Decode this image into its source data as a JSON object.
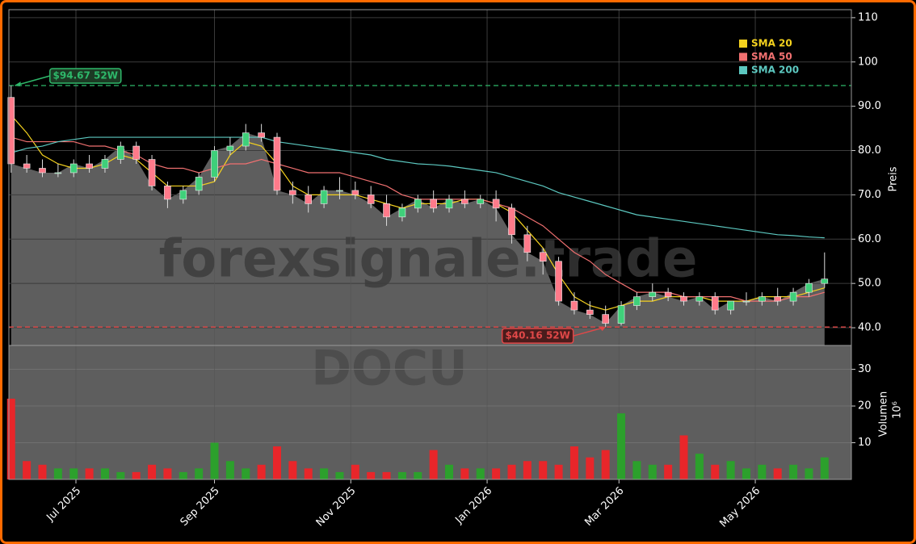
{
  "chart_data": {
    "type": "candlestick",
    "x": [
      1,
      8,
      15,
      22,
      29,
      36,
      43,
      50,
      57,
      64,
      71,
      78,
      85,
      92,
      99,
      106,
      113,
      120,
      127,
      134,
      141,
      148,
      155,
      162,
      169,
      176,
      183,
      190,
      197,
      204,
      211,
      218,
      225,
      232,
      239,
      246,
      253,
      260,
      267,
      274,
      281,
      288,
      295,
      302,
      309,
      316,
      323,
      330,
      337,
      344,
      351,
      358,
      365
    ],
    "xlim": [
      0,
      377
    ],
    "xticks": [
      {
        "value": 30,
        "label": "Jul 2025"
      },
      {
        "value": 92,
        "label": "Sep 2025"
      },
      {
        "value": 153,
        "label": "Nov 2025"
      },
      {
        "value": 214,
        "label": "Jan 2026"
      },
      {
        "value": 273,
        "label": "Mar 2026"
      },
      {
        "value": 334,
        "label": "May 2026"
      }
    ],
    "open": [
      92,
      77,
      76,
      75,
      75,
      77,
      76,
      78,
      81,
      78,
      72,
      69,
      71,
      74,
      80,
      81,
      84,
      83,
      71,
      70,
      68,
      71,
      71,
      70,
      68,
      65,
      67,
      69,
      67,
      69,
      68,
      69,
      67,
      61,
      57,
      55,
      46,
      44,
      43,
      41,
      45,
      47,
      48,
      47,
      46,
      47,
      44,
      46,
      46,
      47,
      46,
      48,
      50
    ],
    "high": [
      94.67,
      79,
      78,
      77,
      78,
      79,
      79,
      82,
      82,
      79,
      73,
      72,
      75,
      81,
      83,
      86,
      86,
      84,
      73,
      72,
      72,
      74,
      73,
      72,
      70,
      68,
      70,
      71,
      70,
      71,
      70,
      71,
      68,
      63,
      58,
      56,
      48,
      46,
      45,
      46,
      48,
      50,
      49,
      48,
      48,
      48,
      46,
      48,
      48,
      49,
      49,
      51,
      57
    ],
    "low": [
      75,
      75,
      74,
      74,
      74,
      75,
      75,
      77,
      77,
      71,
      67,
      68,
      70,
      73,
      79,
      80,
      82,
      70,
      68,
      66,
      67,
      69,
      69,
      67,
      63,
      64,
      66,
      66,
      66,
      67,
      67,
      64,
      59,
      55,
      52,
      45,
      43,
      42,
      40.16,
      40.5,
      44,
      46,
      46,
      45,
      45,
      43,
      43,
      45,
      45,
      45,
      45,
      47,
      49
    ],
    "close": [
      77,
      76,
      75,
      75,
      77,
      76,
      78,
      81,
      78,
      72,
      69,
      71,
      74,
      80,
      81,
      84,
      83,
      71,
      70,
      68,
      71,
      71,
      70,
      68,
      65,
      67,
      69,
      67,
      69,
      68,
      69,
      67,
      61,
      57,
      55,
      46,
      44,
      43,
      41,
      45,
      47,
      48,
      47,
      46,
      47,
      44,
      46,
      46,
      47,
      46,
      48,
      50,
      51
    ],
    "up_color": "#2ca02c",
    "down_color": "#e8262a",
    "area_color": "#5e5e5e",
    "series": [
      {
        "name": "SMA 20",
        "color": "#f5d21e",
        "values": [
          88,
          84,
          79,
          77,
          76,
          76,
          77,
          79,
          78,
          75,
          72,
          72,
          72,
          73,
          79,
          82,
          81,
          77,
          72,
          70,
          70,
          70,
          70,
          69,
          68,
          67,
          68,
          68,
          68,
          69,
          69,
          68,
          66,
          62,
          58,
          52,
          47,
          45,
          44,
          45,
          46,
          46,
          47,
          47,
          47,
          46,
          46,
          46,
          47,
          47,
          47,
          48,
          49
        ]
      },
      {
        "name": "SMA 50",
        "color": "#f07070",
        "values": [
          83,
          82,
          82,
          82,
          82,
          81,
          81,
          80,
          79,
          77,
          76,
          76,
          75,
          76,
          77,
          77,
          78,
          77,
          76,
          75,
          75,
          75,
          74,
          73,
          72,
          70,
          69,
          69,
          69,
          69,
          69,
          68,
          67,
          65,
          63,
          60,
          57,
          55,
          52,
          50,
          48,
          48,
          48,
          47,
          47,
          47,
          47,
          46,
          46,
          46,
          47,
          47,
          48
        ]
      },
      {
        "name": "SMA 200",
        "color": "#5cc8c0",
        "values": [
          79.5,
          80.5,
          81,
          82,
          82.5,
          83,
          83,
          83,
          83,
          83,
          83,
          83,
          83,
          83,
          83,
          83,
          83,
          82,
          81.5,
          81,
          80.5,
          80,
          79.5,
          79,
          78,
          77.5,
          77,
          76.8,
          76.5,
          76,
          75.5,
          75,
          74,
          73,
          72,
          70.5,
          69.5,
          68.5,
          67.5,
          66.5,
          65.5,
          65,
          64.5,
          64,
          63.5,
          63,
          62.5,
          62,
          61.5,
          61,
          60.8,
          60.5,
          60.3
        ]
      }
    ],
    "ylim": [
      36,
      111.8
    ],
    "yticks": [
      {
        "value": 40,
        "label": "40.0"
      },
      {
        "value": 50,
        "label": "50.0"
      },
      {
        "value": 60,
        "label": "60.0"
      },
      {
        "value": 70,
        "label": "70.0"
      },
      {
        "value": 80,
        "label": "80.0"
      },
      {
        "value": 90,
        "label": "90.0"
      },
      100,
      110
    ],
    "y_label": "Preis",
    "volume": {
      "values": [
        22,
        5,
        4,
        3,
        3,
        3,
        3,
        2,
        2,
        4,
        3,
        2,
        3,
        10,
        5,
        3,
        4,
        9,
        5,
        3,
        3,
        2,
        4,
        2,
        2,
        2,
        2,
        8,
        4,
        3,
        3,
        3,
        4,
        5,
        5,
        4,
        9,
        6,
        8,
        18,
        5,
        4,
        4,
        12,
        7,
        4,
        5,
        3,
        4,
        3,
        4,
        3,
        6
      ],
      "ylim": [
        0,
        36.5
      ],
      "yticks": [
        10,
        20,
        30
      ],
      "y_label": "Volumen",
      "unit_label": "10⁶"
    },
    "annotations": [
      {
        "x": 1,
        "value": 94.67,
        "label": "$94.67 52W",
        "color": "#2eb86a"
      },
      {
        "x": 267,
        "value": 40.16,
        "label": "$40.16 52W",
        "color": "#e04848"
      }
    ],
    "watermark": [
      "forexsignale.trade",
      "DOCU"
    ],
    "grid": true,
    "legend": "upper right"
  }
}
